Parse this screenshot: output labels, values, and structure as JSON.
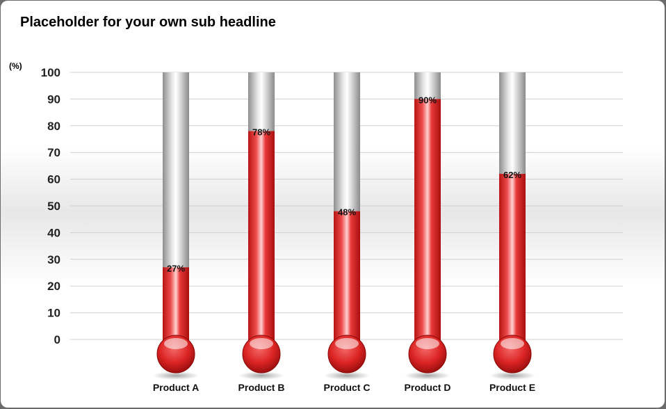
{
  "title": "Placeholder for your own sub headline",
  "unit_label": "(%)",
  "colors": {
    "fill": "#e02424",
    "empty": "#c4c4c4",
    "grid": "#cfcfcf"
  },
  "chart_data": {
    "type": "bar",
    "style": "thermometer",
    "title": "Placeholder for your own sub headline",
    "ylabel": "(%)",
    "ylim": [
      0,
      100
    ],
    "yticks": [
      0,
      10,
      20,
      30,
      40,
      50,
      60,
      70,
      80,
      90,
      100
    ],
    "grid": true,
    "categories": [
      "Product A",
      "Product B",
      "Product C",
      "Product D",
      "Product E"
    ],
    "values": [
      27,
      78,
      48,
      90,
      62
    ],
    "data_labels": [
      "27%",
      "78%",
      "48%",
      "90%",
      "62%"
    ]
  }
}
